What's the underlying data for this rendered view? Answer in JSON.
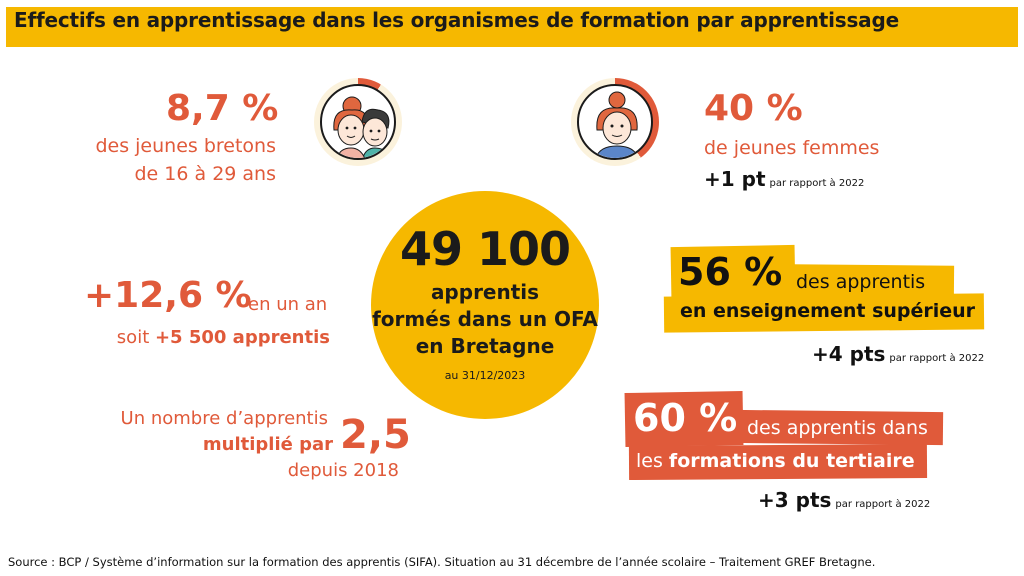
{
  "header": {
    "title": "Effectifs en apprentissage dans les organismes de formation par apprentissage"
  },
  "stat_young": {
    "value": "8,7 %",
    "line1": "des jeunes bretons",
    "line2": "de 16 à 29 ans",
    "share": 0.087
  },
  "stat_women": {
    "value": "40 %",
    "line1": "de jeunes femmes",
    "delta": "+1 pt",
    "delta_note": "par rapport à 2022",
    "share": 0.4
  },
  "center": {
    "number": "49 100",
    "line1": "apprentis",
    "line2": "formés dans un OFA",
    "line3": "en Bretagne",
    "date": "au 31/12/2023"
  },
  "stat_growth": {
    "value": "+12,6 %",
    "suffix": "en un an",
    "line2_prefix": "soit ",
    "line2_bold": "+5 500 apprentis"
  },
  "stat_multiplied": {
    "line1": "Un nombre d’apprentis",
    "line2": "multiplié par",
    "value": "2,5",
    "line3": "depuis 2018"
  },
  "stat_higher_ed": {
    "value": "56 %",
    "line1": "des apprentis",
    "line2": "en enseignement supérieur",
    "delta": "+4 pts",
    "delta_note": "par rapport à 2022"
  },
  "stat_tertiary": {
    "value": "60 %",
    "line1": "des apprentis dans",
    "line2_prefix": "les ",
    "line2_bold": "formations du tertiaire",
    "delta": "+3 pts",
    "delta_note": "par rapport à 2022"
  },
  "source": "Source : BCP / Système d’information sur la formation des apprentis (SIFA). Situation au 31 décembre de l’année scolaire – Traitement GREF Bretagne.",
  "colors": {
    "accent_orange": "#e05a3a",
    "accent_yellow": "#f6b800",
    "ring_bg": "#fbf2dc",
    "text_dark": "#111111"
  },
  "icons": {
    "avatar_pair": "young-people-avatar-icon",
    "avatar_woman": "young-woman-avatar-icon"
  }
}
